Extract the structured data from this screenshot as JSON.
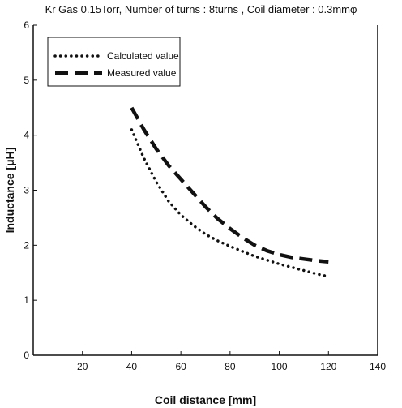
{
  "chart_data": {
    "type": "line",
    "title": "Kr Gas 0.15Torr, Number of turns : 8turns , Coil diameter : 0.3mmφ",
    "xlabel": "Coil distance [mm]",
    "ylabel": "Inductance [μH]",
    "xlim": [
      0,
      140
    ],
    "ylim": [
      0,
      6
    ],
    "x_ticks": [
      "20",
      "40",
      "60",
      "80",
      "100",
      "120",
      "140"
    ],
    "y_ticks": [
      "0",
      "1",
      "2",
      "3",
      "4",
      "5",
      "6"
    ],
    "grid": false,
    "legend_position": "top-left",
    "series": [
      {
        "name": "Calculated value",
        "style": "dotted",
        "x": [
          40,
          45,
          50,
          55,
          60,
          65,
          70,
          75,
          80,
          85,
          90,
          95,
          100,
          105,
          110,
          115,
          120
        ],
        "y": [
          4.1,
          3.58,
          3.15,
          2.8,
          2.55,
          2.36,
          2.2,
          2.08,
          1.98,
          1.89,
          1.8,
          1.73,
          1.66,
          1.6,
          1.54,
          1.48,
          1.43
        ]
      },
      {
        "name": "Measured value",
        "style": "dashed",
        "x": [
          40,
          45,
          50,
          55,
          60,
          65,
          70,
          75,
          80,
          85,
          90,
          95,
          100,
          105,
          110,
          115,
          120
        ],
        "y": [
          4.5,
          4.1,
          3.75,
          3.45,
          3.2,
          2.95,
          2.7,
          2.48,
          2.3,
          2.14,
          2.0,
          1.9,
          1.83,
          1.78,
          1.75,
          1.72,
          1.7
        ]
      }
    ],
    "colors": {
      "axis": "#111111",
      "series": "#111111",
      "background": "#ffffff"
    }
  }
}
